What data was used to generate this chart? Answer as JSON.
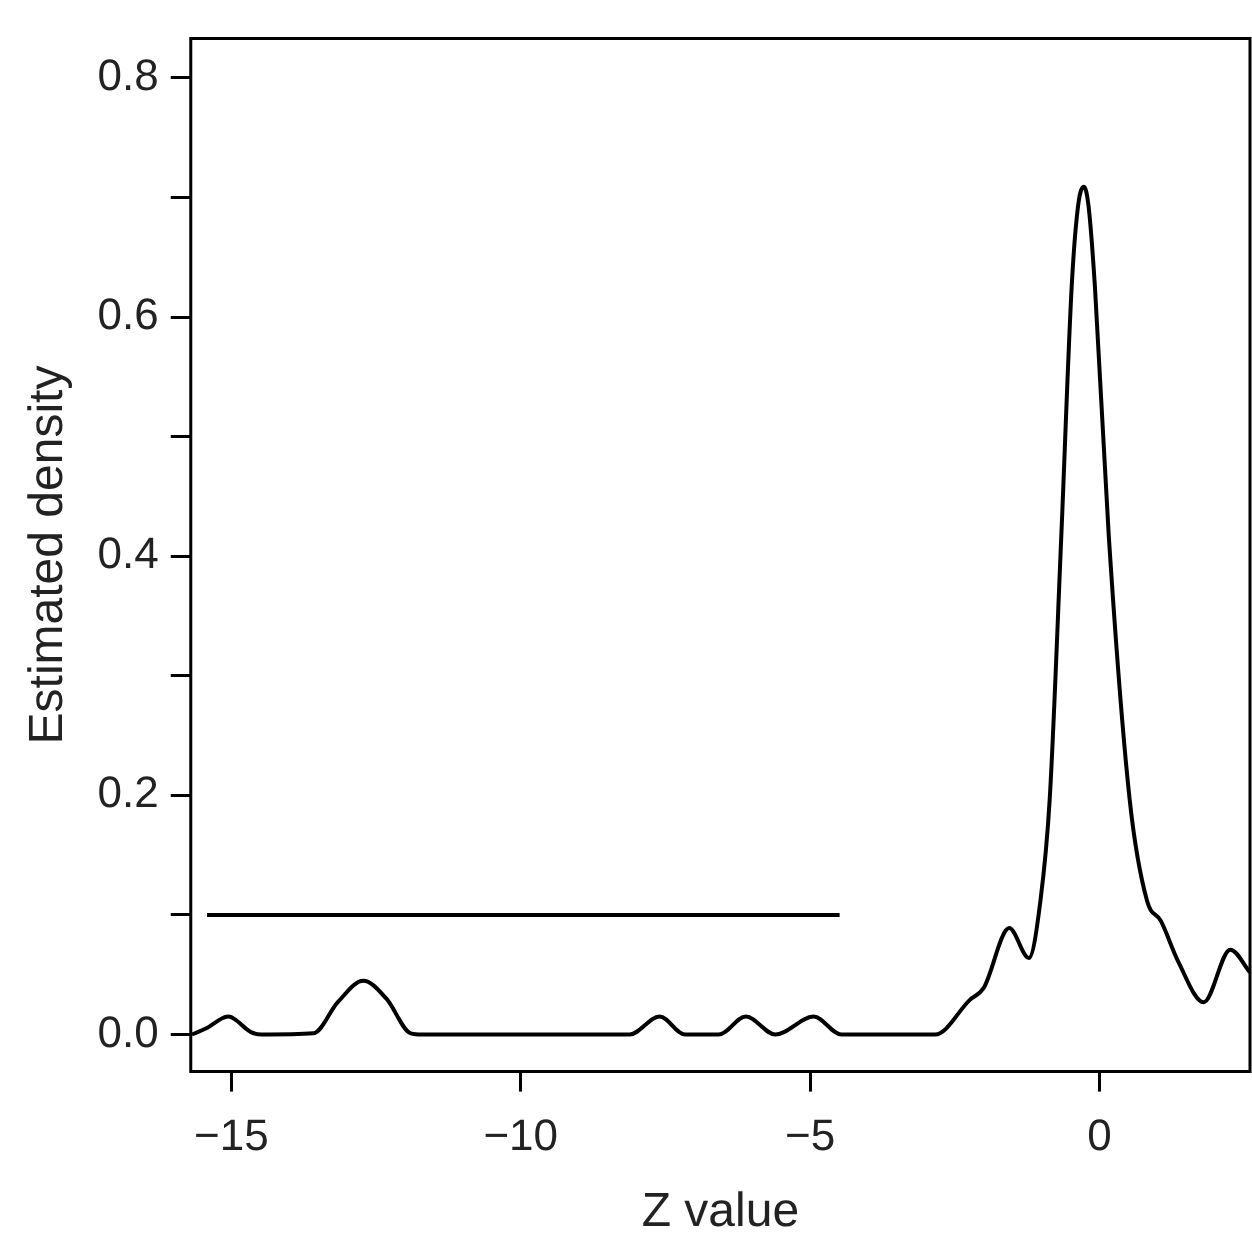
{
  "chart_data": {
    "type": "line",
    "xlabel": "Z value",
    "ylabel": "Estimated density",
    "xlim": [
      -15.7,
      2.6
    ],
    "ylim": [
      -0.031,
      0.833
    ],
    "xticks": [
      -15,
      -10,
      -5,
      0
    ],
    "yticks": [
      {
        "value": 0,
        "label": "0.0"
      },
      {
        "value": 0.1,
        "label": null
      },
      0.2,
      {
        "value": 0.3,
        "label": null
      },
      0.4,
      {
        "value": 0.5,
        "label": null
      },
      0.6,
      {
        "value": 0.7,
        "label": null
      },
      0.8
    ],
    "grid": false,
    "legend": false,
    "marker": "none",
    "line_style": "solid",
    "series": [
      {
        "color": "#000000",
        "x": [
          -15.68,
          -15.44,
          -15.05,
          -14.66,
          -14.48,
          -13.58,
          -13.16,
          -12.72,
          -12.32,
          -11.9,
          -11.7,
          -8.12,
          -7.6,
          -7.16,
          -6.58,
          -6.11,
          -5.6,
          -4.94,
          -4.46,
          -2.84,
          -2.24,
          -2.0,
          -1.56,
          -1.22,
          -1.02,
          -0.86,
          -0.66,
          -0.48,
          -0.37,
          -0.27,
          -0.19,
          -0.08,
          0.16,
          0.52,
          0.82,
          1.06,
          1.36,
          1.8,
          2.26,
          2.6
        ],
        "values": [
          0.0,
          0.005,
          0.015,
          0.002,
          0.0,
          0.001,
          0.027,
          0.045,
          0.03,
          0.001,
          0.0,
          0.0,
          0.015,
          0.0,
          0.0,
          0.015,
          0.0,
          0.015,
          0.0,
          0.0,
          0.029,
          0.039,
          0.089,
          0.064,
          0.112,
          0.197,
          0.417,
          0.626,
          0.693,
          0.709,
          0.693,
          0.626,
          0.417,
          0.197,
          0.112,
          0.095,
          0.061,
          0.027,
          0.071,
          0.052
        ]
      },
      {
        "color": "#000000",
        "x": [
          -15.42,
          -4.49
        ],
        "values": [
          0.1,
          0.1
        ]
      }
    ]
  }
}
